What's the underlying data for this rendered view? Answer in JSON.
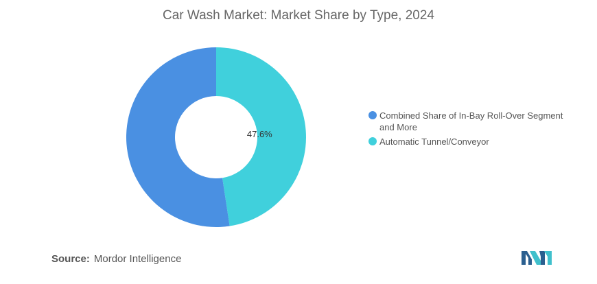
{
  "chart_data": {
    "type": "pie",
    "title": "Car Wash Market: Market Share by Type, 2024",
    "donut": true,
    "series": [
      {
        "name": "Combined Share of In-Bay Roll-Over Segment and More",
        "value": 52.4,
        "label": "",
        "color": "#4a90e2"
      },
      {
        "name": "Automatic Tunnel/Conveyor",
        "value": 47.6,
        "label": "47.6%",
        "color": "#40d0dc"
      }
    ],
    "legend_position": "right"
  },
  "source": {
    "label": "Source:",
    "text": "Mordor Intelligence"
  },
  "logo": {
    "icon": "mordor-intelligence-logo-icon"
  }
}
